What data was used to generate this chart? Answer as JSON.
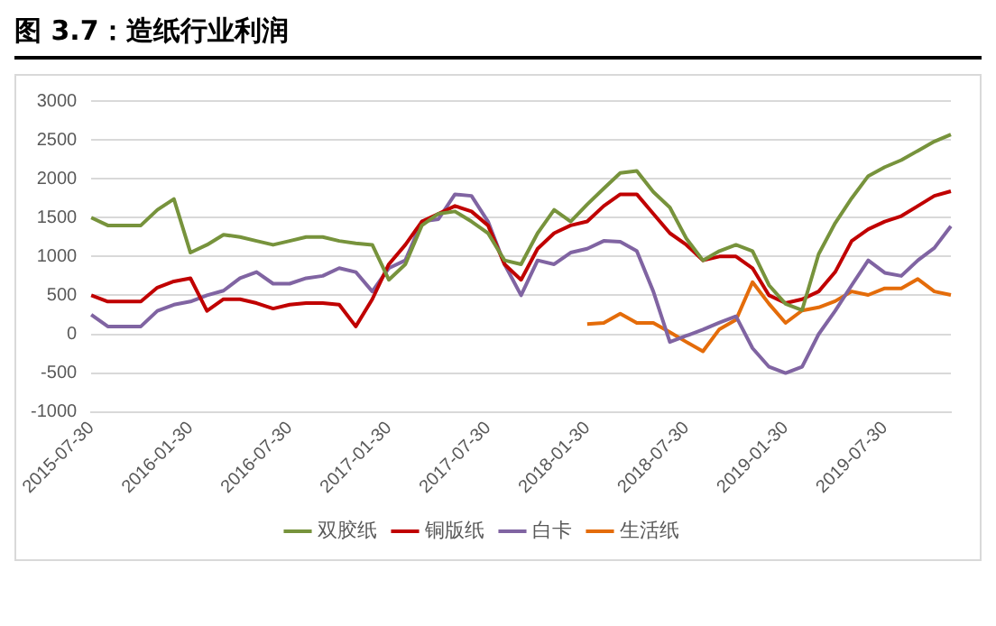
{
  "chart_data": {
    "type": "line",
    "title": "图 3.7：造纸行业利润",
    "categories": [
      "2015-07-30",
      null,
      null,
      null,
      null,
      null,
      "2016-01-30",
      null,
      null,
      null,
      null,
      null,
      "2016-07-30",
      null,
      null,
      null,
      null,
      null,
      "2017-01-30",
      null,
      null,
      null,
      null,
      null,
      "2017-07-30",
      null,
      null,
      null,
      null,
      null,
      "2018-01-30",
      null,
      null,
      null,
      null,
      null,
      "2018-07-30",
      null,
      null,
      null,
      null,
      null,
      "2019-01-30",
      null,
      null,
      null,
      null,
      null,
      "2019-07-30",
      null,
      null,
      null,
      null
    ],
    "series": [
      {
        "name": "双胶纸",
        "color": "#77933c",
        "values": [
          1500,
          1400,
          1400,
          1400,
          1600,
          1740,
          1050,
          1150,
          1280,
          1250,
          1200,
          1150,
          1200,
          1250,
          1250,
          1200,
          1170,
          1150,
          700,
          900,
          1400,
          1550,
          1580,
          1450,
          1300,
          950,
          900,
          1300,
          1600,
          1450,
          1670,
          1875,
          2075,
          2100,
          1830,
          1630,
          1230,
          950,
          1070,
          1150,
          1070,
          630,
          390,
          310,
          1030,
          1430,
          1750,
          2035,
          2150,
          2240,
          2360,
          2480,
          2570
        ]
      },
      {
        "name": "铜版纸",
        "color": "#c00000",
        "values": [
          500,
          420,
          420,
          420,
          600,
          680,
          720,
          300,
          450,
          450,
          400,
          330,
          380,
          400,
          400,
          380,
          100,
          450,
          900,
          1150,
          1450,
          1550,
          1650,
          1580,
          1400,
          900,
          700,
          1100,
          1300,
          1400,
          1450,
          1650,
          1800,
          1800,
          1550,
          1300,
          1150,
          950,
          1000,
          1000,
          850,
          500,
          400,
          450,
          550,
          800,
          1200,
          1350,
          1450,
          1520,
          1650,
          1780,
          1840
        ]
      },
      {
        "name": "白卡",
        "color": "#8064a2",
        "values": [
          250,
          100,
          100,
          100,
          300,
          380,
          420,
          500,
          560,
          720,
          800,
          650,
          650,
          720,
          750,
          850,
          800,
          550,
          850,
          950,
          1450,
          1480,
          1800,
          1780,
          1450,
          900,
          500,
          950,
          900,
          1050,
          1100,
          1200,
          1190,
          1070,
          550,
          -100,
          -20,
          60,
          150,
          230,
          -180,
          -420,
          -500,
          -420,
          0,
          300,
          630,
          950,
          790,
          750,
          950,
          1110,
          1390
        ]
      },
      {
        "name": "生活纸",
        "color": "#e46c0a",
        "values": [
          null,
          null,
          null,
          null,
          null,
          null,
          null,
          null,
          null,
          null,
          null,
          null,
          null,
          null,
          null,
          null,
          null,
          null,
          null,
          null,
          null,
          null,
          null,
          null,
          null,
          null,
          null,
          null,
          null,
          null,
          130,
          145,
          265,
          145,
          145,
          25,
          -100,
          -220,
          65,
          185,
          670,
          390,
          145,
          305,
          345,
          425,
          550,
          505,
          590,
          590,
          710,
          550,
          505
        ]
      }
    ],
    "ylim": [
      -1000,
      3000
    ],
    "yticks": [
      -1000,
      -500,
      0,
      500,
      1000,
      1500,
      2000,
      2500,
      3000
    ],
    "grid": "y",
    "legend": "bottom",
    "marker": "none",
    "line_style": "solid"
  }
}
